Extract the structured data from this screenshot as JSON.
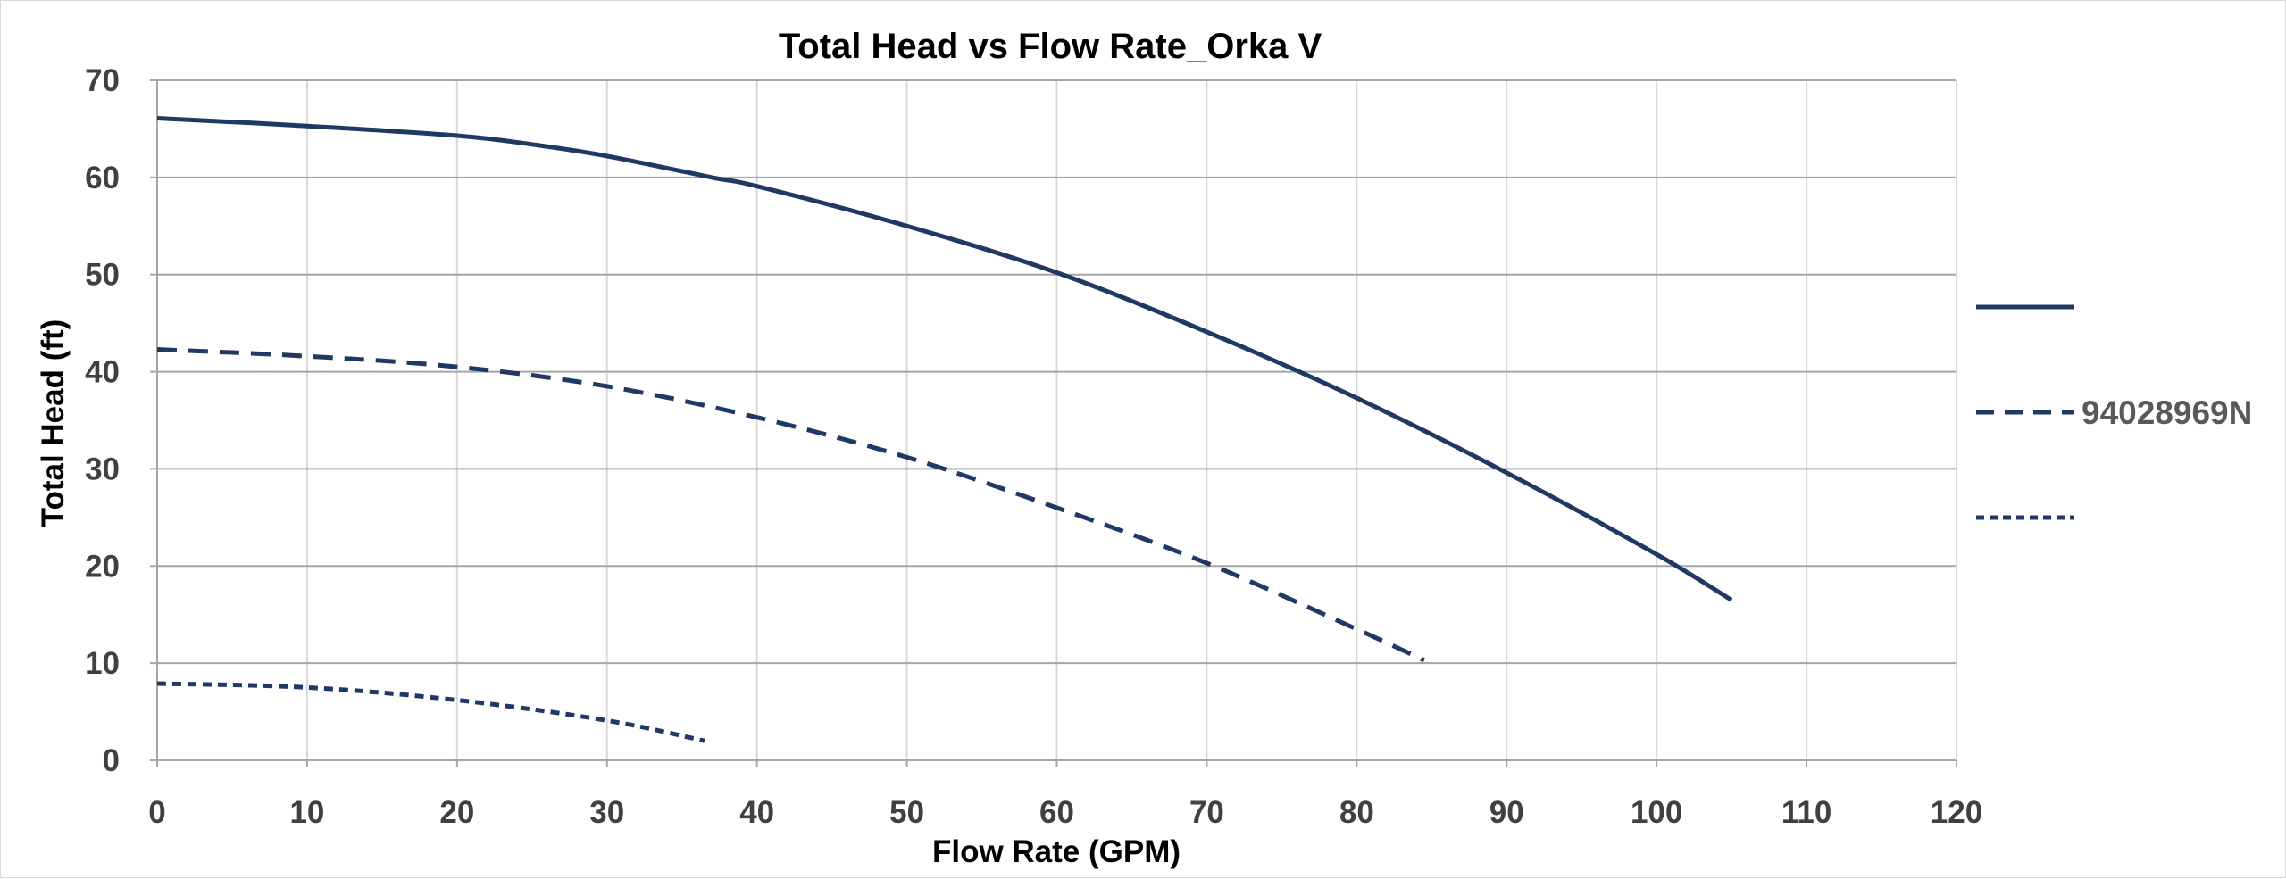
{
  "chart_data": {
    "type": "line",
    "title": "Total Head vs Flow Rate_Orka V",
    "xlabel": "Flow Rate (GPM)",
    "ylabel": "Total Head (ft)",
    "xlim": [
      0,
      120
    ],
    "ylim": [
      0,
      70
    ],
    "x_ticks": [
      0,
      10,
      20,
      30,
      40,
      50,
      60,
      70,
      80,
      90,
      100,
      110,
      120
    ],
    "y_ticks": [
      0,
      10,
      20,
      30,
      40,
      50,
      60,
      70
    ],
    "grid": true,
    "legend_position": "right",
    "line_color": "#203864",
    "series": [
      {
        "name": "",
        "style": "solid",
        "x": [
          0,
          10,
          20,
          25,
          30,
          37,
          40,
          50,
          60,
          70,
          80,
          90,
          100,
          105
        ],
        "y": [
          66.1,
          65.3,
          64.3,
          63.4,
          62.2,
          60.0,
          59.1,
          55.0,
          50.2,
          44.1,
          37.3,
          29.6,
          21.2,
          16.5
        ]
      },
      {
        "name": "94028969N",
        "style": "dashed",
        "x": [
          0,
          10,
          20,
          30,
          40,
          50,
          60,
          70,
          80,
          84.5
        ],
        "y": [
          42.3,
          41.6,
          40.5,
          38.5,
          35.3,
          31.2,
          26.0,
          20.3,
          13.5,
          10.3
        ]
      },
      {
        "name": "",
        "style": "dotted",
        "x": [
          0,
          10,
          20,
          30,
          36.5
        ],
        "y": [
          7.9,
          7.5,
          6.2,
          4.1,
          2.0
        ]
      }
    ]
  }
}
